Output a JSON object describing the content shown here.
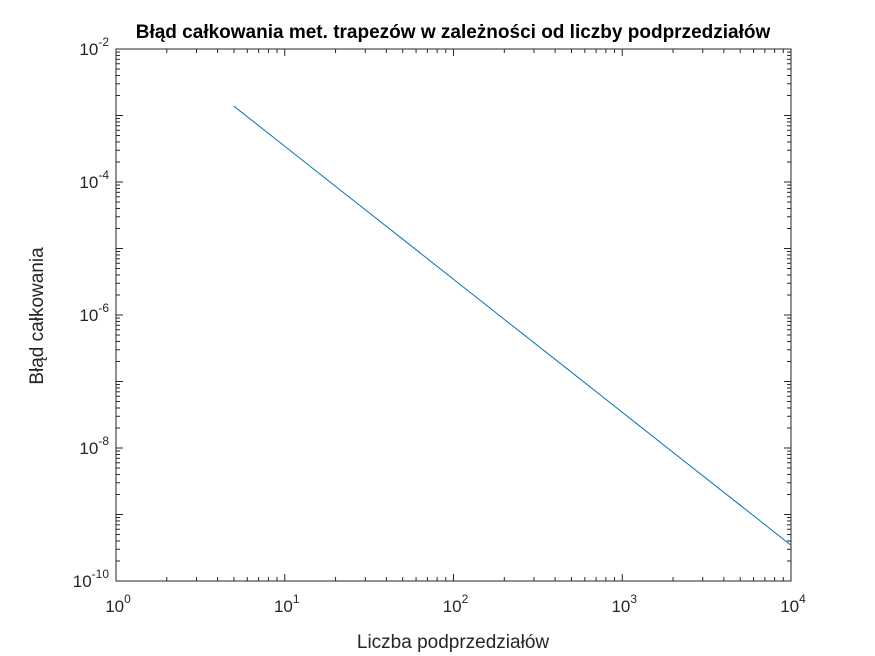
{
  "chart_data": {
    "type": "line",
    "title": "Błąd całkowania met. trapezów w zależności od liczby podprzedziałów",
    "xlabel": "Liczba podprzedziałów",
    "ylabel": "Błąd całkowania",
    "xscale": "log",
    "yscale": "log",
    "xlim": [
      1,
      10000
    ],
    "ylim": [
      1e-10,
      0.01
    ],
    "grid": false,
    "legend": "none",
    "xticks": [
      {
        "base": "10",
        "exp": "0",
        "value": 1
      },
      {
        "base": "10",
        "exp": "1",
        "value": 10
      },
      {
        "base": "10",
        "exp": "2",
        "value": 100
      },
      {
        "base": "10",
        "exp": "3",
        "value": 1000
      },
      {
        "base": "10",
        "exp": "4",
        "value": 10000
      }
    ],
    "yticks": [
      {
        "base": "10",
        "exp": "-10",
        "value": 1e-10
      },
      {
        "base": "10",
        "exp": "-8",
        "value": 1e-08
      },
      {
        "base": "10",
        "exp": "-6",
        "value": 1e-06
      },
      {
        "base": "10",
        "exp": "-4",
        "value": 0.0001
      },
      {
        "base": "10",
        "exp": "-2",
        "value": 0.01
      }
    ],
    "series": [
      {
        "color": "#0072BD",
        "x": [
          5,
          10,
          20,
          50,
          100,
          200,
          500,
          1000,
          2000,
          5000,
          10000
        ],
        "y": [
          0.00138,
          0.000345,
          8.6e-05,
          1.38e-05,
          3.45e-06,
          8.6e-07,
          1.38e-07,
          3.45e-08,
          8.6e-09,
          1.38e-09,
          3.45e-10
        ]
      }
    ]
  }
}
